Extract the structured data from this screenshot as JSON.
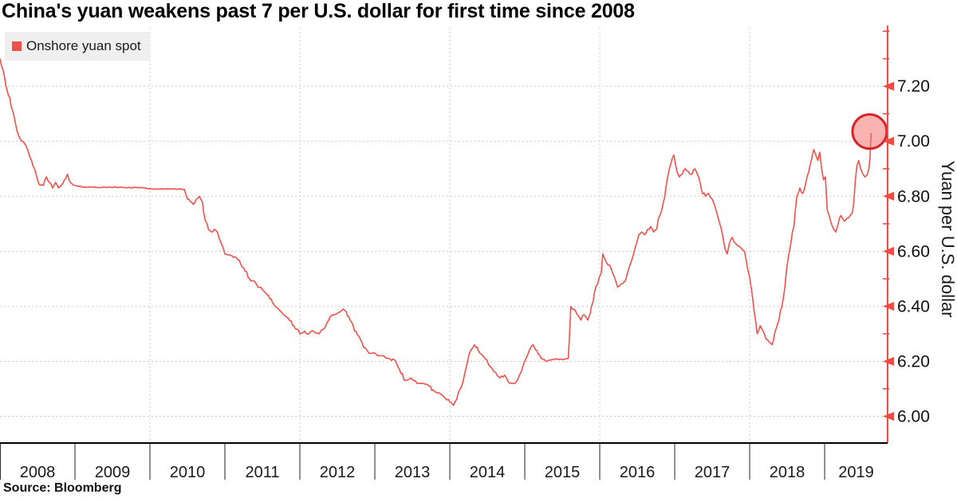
{
  "header": {
    "title": "China's yuan weakens past 7 per U.S. dollar for first time since 2008"
  },
  "legend": {
    "label": "Onshore yuan spot",
    "swatch_color": "#f0514d",
    "background": "#efefef",
    "position": "top-left"
  },
  "source": {
    "label": "Source: Bloomberg"
  },
  "chart_data": {
    "type": "line",
    "title": "China's yuan weakens past 7 per U.S. dollar for first time since 2008",
    "xlabel": "",
    "ylabel": "Yuan per U.S. dollar",
    "x_tick_years": [
      2008,
      2009,
      2010,
      2011,
      2012,
      2013,
      2014,
      2015,
      2016,
      2017,
      2018,
      2019
    ],
    "x_tick_labels": [
      "2008",
      "2009",
      "2010",
      "2011",
      "2012",
      "2013",
      "2014",
      "2015",
      "2016",
      "2017",
      "2018",
      "2019"
    ],
    "xlim": [
      2008.0,
      2019.84
    ],
    "ylim": [
      5.9,
      7.41
    ],
    "y_tick_values": [
      6.0,
      6.2,
      6.4,
      6.6,
      6.8,
      7.0,
      7.2
    ],
    "y_tick_labels": [
      "6.00",
      "6.20",
      "6.40",
      "6.60",
      "6.80",
      "7.00",
      "7.20"
    ],
    "y_minor_tick_values": [
      6.1,
      6.3,
      6.5,
      6.7,
      6.9,
      7.1,
      7.3,
      7.4
    ],
    "grid": {
      "x_years": [
        2010,
        2012,
        2014,
        2016,
        2018
      ],
      "y_values": [
        6.0,
        6.2,
        6.4,
        6.6,
        6.8,
        7.0,
        7.2
      ],
      "style": "dashed",
      "color": "#cbcbcb"
    },
    "axis_colors": {
      "y_axis": "#ee4b43",
      "x_axis": "#000000",
      "tick_text": "#111111"
    },
    "legend_position": "top-left",
    "noise_amplitude": 0.012,
    "series": [
      {
        "name": "Onshore yuan spot",
        "color": "#f0514d",
        "points": [
          [
            2008.0,
            7.3
          ],
          [
            2008.04,
            7.26
          ],
          [
            2008.08,
            7.2
          ],
          [
            2008.13,
            7.16
          ],
          [
            2008.17,
            7.11
          ],
          [
            2008.21,
            7.06
          ],
          [
            2008.25,
            7.02
          ],
          [
            2008.29,
            7.0
          ],
          [
            2008.33,
            6.99
          ],
          [
            2008.38,
            6.96
          ],
          [
            2008.42,
            6.93
          ],
          [
            2008.46,
            6.9
          ],
          [
            2008.5,
            6.86
          ],
          [
            2008.54,
            6.84
          ],
          [
            2008.58,
            6.84
          ],
          [
            2008.62,
            6.87
          ],
          [
            2008.66,
            6.85
          ],
          [
            2008.7,
            6.83
          ],
          [
            2008.74,
            6.85
          ],
          [
            2008.78,
            6.83
          ],
          [
            2008.82,
            6.84
          ],
          [
            2008.86,
            6.86
          ],
          [
            2008.9,
            6.88
          ],
          [
            2008.94,
            6.85
          ],
          [
            2008.98,
            6.84
          ],
          [
            2009.1,
            6.833
          ],
          [
            2009.2,
            6.834
          ],
          [
            2009.3,
            6.832
          ],
          [
            2009.4,
            6.833
          ],
          [
            2009.5,
            6.832
          ],
          [
            2009.6,
            6.833
          ],
          [
            2009.7,
            6.831
          ],
          [
            2009.8,
            6.832
          ],
          [
            2009.9,
            6.831
          ],
          [
            2010.0,
            6.828
          ],
          [
            2010.1,
            6.827
          ],
          [
            2010.2,
            6.827
          ],
          [
            2010.3,
            6.826
          ],
          [
            2010.4,
            6.826
          ],
          [
            2010.46,
            6.825
          ],
          [
            2010.5,
            6.79
          ],
          [
            2010.54,
            6.78
          ],
          [
            2010.58,
            6.77
          ],
          [
            2010.62,
            6.79
          ],
          [
            2010.66,
            6.8
          ],
          [
            2010.7,
            6.78
          ],
          [
            2010.74,
            6.71
          ],
          [
            2010.78,
            6.68
          ],
          [
            2010.82,
            6.67
          ],
          [
            2010.86,
            6.68
          ],
          [
            2010.9,
            6.67
          ],
          [
            2010.95,
            6.63
          ],
          [
            2011.0,
            6.59
          ],
          [
            2011.08,
            6.585
          ],
          [
            2011.17,
            6.57
          ],
          [
            2011.25,
            6.54
          ],
          [
            2011.33,
            6.5
          ],
          [
            2011.42,
            6.48
          ],
          [
            2011.5,
            6.46
          ],
          [
            2011.58,
            6.44
          ],
          [
            2011.67,
            6.4
          ],
          [
            2011.75,
            6.38
          ],
          [
            2011.83,
            6.36
          ],
          [
            2011.92,
            6.33
          ],
          [
            2012.0,
            6.3
          ],
          [
            2012.06,
            6.31
          ],
          [
            2012.12,
            6.3
          ],
          [
            2012.18,
            6.31
          ],
          [
            2012.25,
            6.3
          ],
          [
            2012.33,
            6.32
          ],
          [
            2012.4,
            6.36
          ],
          [
            2012.46,
            6.37
          ],
          [
            2012.54,
            6.38
          ],
          [
            2012.58,
            6.39
          ],
          [
            2012.62,
            6.38
          ],
          [
            2012.67,
            6.35
          ],
          [
            2012.73,
            6.31
          ],
          [
            2012.79,
            6.29
          ],
          [
            2012.85,
            6.25
          ],
          [
            2012.92,
            6.23
          ],
          [
            2012.97,
            6.23
          ],
          [
            2013.04,
            6.22
          ],
          [
            2013.12,
            6.22
          ],
          [
            2013.2,
            6.21
          ],
          [
            2013.28,
            6.2
          ],
          [
            2013.33,
            6.17
          ],
          [
            2013.4,
            6.13
          ],
          [
            2013.48,
            6.14
          ],
          [
            2013.56,
            6.12
          ],
          [
            2013.64,
            6.12
          ],
          [
            2013.72,
            6.11
          ],
          [
            2013.8,
            6.09
          ],
          [
            2013.88,
            6.08
          ],
          [
            2013.96,
            6.06
          ],
          [
            2014.02,
            6.05
          ],
          [
            2014.05,
            6.04
          ],
          [
            2014.09,
            6.06
          ],
          [
            2014.14,
            6.1
          ],
          [
            2014.18,
            6.13
          ],
          [
            2014.23,
            6.19
          ],
          [
            2014.28,
            6.24
          ],
          [
            2014.33,
            6.26
          ],
          [
            2014.4,
            6.23
          ],
          [
            2014.47,
            6.21
          ],
          [
            2014.54,
            6.18
          ],
          [
            2014.61,
            6.16
          ],
          [
            2014.67,
            6.14
          ],
          [
            2014.73,
            6.15
          ],
          [
            2014.8,
            6.12
          ],
          [
            2014.87,
            6.12
          ],
          [
            2014.93,
            6.15
          ],
          [
            2015.0,
            6.2
          ],
          [
            2015.06,
            6.24
          ],
          [
            2015.11,
            6.26
          ],
          [
            2015.16,
            6.24
          ],
          [
            2015.22,
            6.21
          ],
          [
            2015.28,
            6.2
          ],
          [
            2015.35,
            6.205
          ],
          [
            2015.42,
            6.209
          ],
          [
            2015.5,
            6.207
          ],
          [
            2015.58,
            6.21
          ],
          [
            2015.615,
            6.4
          ],
          [
            2015.65,
            6.39
          ],
          [
            2015.7,
            6.37
          ],
          [
            2015.75,
            6.35
          ],
          [
            2015.79,
            6.37
          ],
          [
            2015.84,
            6.35
          ],
          [
            2015.89,
            6.4
          ],
          [
            2015.93,
            6.45
          ],
          [
            2015.97,
            6.48
          ],
          [
            2016.02,
            6.52
          ],
          [
            2016.04,
            6.59
          ],
          [
            2016.07,
            6.57
          ],
          [
            2016.11,
            6.55
          ],
          [
            2016.15,
            6.54
          ],
          [
            2016.19,
            6.51
          ],
          [
            2016.24,
            6.47
          ],
          [
            2016.28,
            6.48
          ],
          [
            2016.33,
            6.49
          ],
          [
            2016.38,
            6.53
          ],
          [
            2016.43,
            6.57
          ],
          [
            2016.48,
            6.62
          ],
          [
            2016.52,
            6.66
          ],
          [
            2016.56,
            6.67
          ],
          [
            2016.6,
            6.66
          ],
          [
            2016.64,
            6.68
          ],
          [
            2016.68,
            6.69
          ],
          [
            2016.72,
            6.67
          ],
          [
            2016.76,
            6.68
          ],
          [
            2016.8,
            6.73
          ],
          [
            2016.85,
            6.78
          ],
          [
            2016.9,
            6.86
          ],
          [
            2016.95,
            6.92
          ],
          [
            2016.99,
            6.95
          ],
          [
            2017.03,
            6.89
          ],
          [
            2017.06,
            6.87
          ],
          [
            2017.1,
            6.88
          ],
          [
            2017.14,
            6.9
          ],
          [
            2017.18,
            6.89
          ],
          [
            2017.23,
            6.88
          ],
          [
            2017.27,
            6.9
          ],
          [
            2017.32,
            6.87
          ],
          [
            2017.36,
            6.82
          ],
          [
            2017.41,
            6.8
          ],
          [
            2017.45,
            6.81
          ],
          [
            2017.5,
            6.79
          ],
          [
            2017.54,
            6.76
          ],
          [
            2017.58,
            6.72
          ],
          [
            2017.63,
            6.67
          ],
          [
            2017.67,
            6.61
          ],
          [
            2017.7,
            6.59
          ],
          [
            2017.73,
            6.63
          ],
          [
            2017.77,
            6.65
          ],
          [
            2017.81,
            6.63
          ],
          [
            2017.85,
            6.62
          ],
          [
            2017.89,
            6.61
          ],
          [
            2017.93,
            6.6
          ],
          [
            2017.97,
            6.54
          ],
          [
            2018.02,
            6.47
          ],
          [
            2018.06,
            6.38
          ],
          [
            2018.1,
            6.3
          ],
          [
            2018.14,
            6.33
          ],
          [
            2018.18,
            6.31
          ],
          [
            2018.22,
            6.28
          ],
          [
            2018.26,
            6.27
          ],
          [
            2018.3,
            6.26
          ],
          [
            2018.34,
            6.31
          ],
          [
            2018.39,
            6.35
          ],
          [
            2018.43,
            6.4
          ],
          [
            2018.47,
            6.47
          ],
          [
            2018.51,
            6.57
          ],
          [
            2018.55,
            6.63
          ],
          [
            2018.59,
            6.69
          ],
          [
            2018.63,
            6.8
          ],
          [
            2018.67,
            6.83
          ],
          [
            2018.71,
            6.81
          ],
          [
            2018.75,
            6.85
          ],
          [
            2018.79,
            6.89
          ],
          [
            2018.83,
            6.94
          ],
          [
            2018.855,
            6.97
          ],
          [
            2018.88,
            6.95
          ],
          [
            2018.91,
            6.93
          ],
          [
            2018.935,
            6.96
          ],
          [
            2018.96,
            6.9
          ],
          [
            2018.985,
            6.86
          ],
          [
            2019.01,
            6.87
          ],
          [
            2019.035,
            6.75
          ],
          [
            2019.06,
            6.73
          ],
          [
            2019.09,
            6.7
          ],
          [
            2019.12,
            6.68
          ],
          [
            2019.15,
            6.67
          ],
          [
            2019.18,
            6.7
          ],
          [
            2019.22,
            6.73
          ],
          [
            2019.26,
            6.71
          ],
          [
            2019.3,
            6.72
          ],
          [
            2019.34,
            6.73
          ],
          [
            2019.37,
            6.74
          ],
          [
            2019.39,
            6.78
          ],
          [
            2019.41,
            6.86
          ],
          [
            2019.43,
            6.91
          ],
          [
            2019.455,
            6.93
          ],
          [
            2019.48,
            6.9
          ],
          [
            2019.51,
            6.88
          ],
          [
            2019.54,
            6.87
          ],
          [
            2019.57,
            6.88
          ],
          [
            2019.59,
            6.9
          ],
          [
            2019.605,
            6.94
          ],
          [
            2019.62,
            7.03
          ]
        ]
      }
    ],
    "annotations": [
      {
        "type": "circle",
        "t": 2019.6,
        "value": 7.035,
        "radius_px": 21.5,
        "fill": "rgba(243,111,108,0.52)",
        "stroke": "#d82426",
        "stroke_width": 3
      }
    ],
    "last_point": {
      "t": 2019.62,
      "value": 7.03
    }
  }
}
